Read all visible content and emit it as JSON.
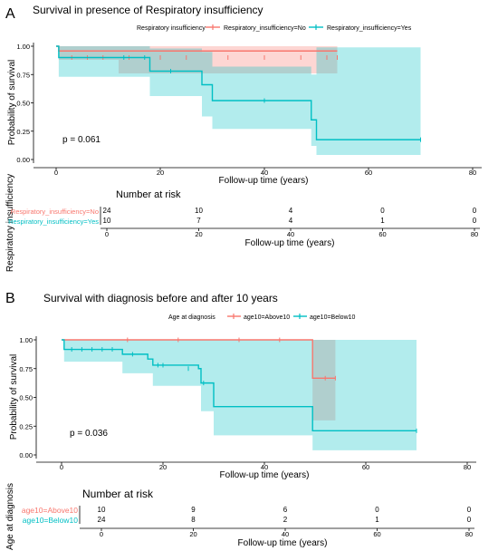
{
  "panels": [
    {
      "letter": "A",
      "title": "Survival in presence of Respiratory insufficiency",
      "legend_title": "Respiratory insufficiency",
      "pvalue": "p = 0.061",
      "risk_title": "Number at risk",
      "risk_ylabel": "Respiratory insufficiency"
    },
    {
      "letter": "B",
      "title": "Survival with diagnosis before and after 10 years",
      "legend_title": "Age at diagnosis",
      "pvalue": "p = 0.036",
      "risk_title": "Number at risk",
      "risk_ylabel": "Age at diagnosis"
    }
  ],
  "colors": {
    "red": "#F8766D",
    "cyan": "#00BFC4"
  },
  "chart_data": [
    {
      "type": "line",
      "title": "Survival in presence of Respiratory insufficiency",
      "xlabel": "Follow-up time (years)",
      "ylabel": "Probability of survival",
      "xlim": [
        0,
        80
      ],
      "ylim": [
        0,
        1
      ],
      "xticks": [
        "0",
        "20",
        "40",
        "60",
        "80"
      ],
      "yticks": [
        "0.00",
        "0.25",
        "0.50",
        "0.75",
        "1.00"
      ],
      "legend_position": "top",
      "series": [
        {
          "name": "Respiratory_insufficiency=No",
          "color": "#F8766D",
          "steps": [
            [
              0,
              1.0
            ],
            [
              0.5,
              0.958
            ],
            [
              54,
              0.958
            ]
          ],
          "band": [
            [
              0,
              1.0,
              1.0
            ],
            [
              0.5,
              1.0,
              0.88
            ],
            [
              12,
              1.0,
              0.76
            ],
            [
              54,
              1.0,
              0.76
            ]
          ],
          "censor": [
            [
              3,
              0.958
            ],
            [
              6,
              0.958
            ],
            [
              9,
              0.958
            ],
            [
              14,
              0.958
            ],
            [
              20,
              0.958
            ],
            [
              25,
              0.958
            ],
            [
              33,
              0.958
            ],
            [
              40,
              0.958
            ],
            [
              47,
              0.958
            ],
            [
              52,
              0.958
            ],
            [
              54,
              0.958
            ]
          ],
          "censor_level": 0.9,
          "risk": [
            "24",
            "10",
            "4",
            "0",
            "0"
          ]
        },
        {
          "name": "Respiratory_insufficiency=Yes",
          "color": "#00BFC4",
          "steps": [
            [
              0,
              1.0
            ],
            [
              0.5,
              0.9
            ],
            [
              18,
              0.78
            ],
            [
              28,
              0.66
            ],
            [
              30,
              0.52
            ],
            [
              49,
              0.35
            ],
            [
              50,
              0.175
            ],
            [
              70,
              0.175
            ]
          ],
          "band": [
            [
              0,
              1.0,
              1.0
            ],
            [
              0.5,
              1.0,
              0.73
            ],
            [
              18,
              0.98,
              0.56
            ],
            [
              28,
              0.95,
              0.38
            ],
            [
              30,
              0.82,
              0.27
            ],
            [
              49,
              0.75,
              0.12
            ],
            [
              50,
              0.99,
              0.04
            ],
            [
              70,
              0.99,
              0.04
            ]
          ],
          "censor": [
            [
              13,
              0.9
            ],
            [
              17,
              0.9
            ],
            [
              22,
              0.78
            ],
            [
              40,
              0.52
            ],
            [
              70,
              0.175
            ]
          ],
          "risk": [
            "10",
            "7",
            "4",
            "1",
            "0"
          ]
        }
      ],
      "risk_xticks": [
        "0",
        "20",
        "40",
        "60",
        "80"
      ],
      "risk_xlabel": "Follow-up time (years)"
    },
    {
      "type": "line",
      "title": "Survival with diagnosis before and after 10 years",
      "xlabel": "Follow-up time (years)",
      "ylabel": "Probability of survival",
      "xlim": [
        0,
        80
      ],
      "ylim": [
        0,
        1
      ],
      "xticks": [
        "0",
        "20",
        "40",
        "60",
        "80"
      ],
      "yticks": [
        "0.00",
        "0.25",
        "0.50",
        "0.75",
        "1.00"
      ],
      "legend_position": "top",
      "series": [
        {
          "name": "age10=Above10",
          "color": "#F8766D",
          "steps": [
            [
              0,
              1.0
            ],
            [
              49.5,
              1.0
            ],
            [
              49.5,
              0.667
            ],
            [
              54,
              0.667
            ]
          ],
          "band": [
            [
              0,
              1.0,
              1.0
            ],
            [
              49.5,
              1.0,
              0.3
            ],
            [
              54,
              1.0,
              0.3
            ]
          ],
          "censor": [
            [
              13,
              1.0
            ],
            [
              23,
              1.0
            ],
            [
              35,
              1.0
            ],
            [
              43,
              1.0
            ],
            [
              52,
              0.667
            ],
            [
              54,
              0.667
            ]
          ],
          "risk": [
            "10",
            "9",
            "6",
            "0",
            "0"
          ]
        },
        {
          "name": "age10=Below10",
          "color": "#00BFC4",
          "steps": [
            [
              0,
              1.0
            ],
            [
              0.5,
              0.917
            ],
            [
              12,
              0.875
            ],
            [
              17,
              0.833
            ],
            [
              18,
              0.78
            ],
            [
              27,
              0.75
            ],
            [
              27.5,
              0.625
            ],
            [
              30,
              0.42
            ],
            [
              49.5,
              0.42
            ],
            [
              49.5,
              0.21
            ],
            [
              70,
              0.21
            ]
          ],
          "band": [
            [
              0,
              1.0,
              1.0
            ],
            [
              0.5,
              1.0,
              0.81
            ],
            [
              12,
              1.0,
              0.71
            ],
            [
              18,
              1.0,
              0.6
            ],
            [
              27.5,
              1.0,
              0.38
            ],
            [
              30,
              1.0,
              0.17
            ],
            [
              49.5,
              1.0,
              0.04
            ],
            [
              70,
              1.0,
              0.04
            ]
          ],
          "censor": [
            [
              2,
              0.917
            ],
            [
              4,
              0.917
            ],
            [
              6,
              0.917
            ],
            [
              8,
              0.917
            ],
            [
              10,
              0.917
            ],
            [
              14,
              0.875
            ],
            [
              19,
              0.78
            ],
            [
              20,
              0.78
            ],
            [
              25,
              0.75
            ],
            [
              28,
              0.625
            ],
            [
              70,
              0.21
            ]
          ],
          "risk": [
            "24",
            "8",
            "2",
            "1",
            "0"
          ]
        }
      ],
      "risk_xticks": [
        "0",
        "20",
        "40",
        "60",
        "80"
      ],
      "risk_xlabel": "Follow-up time (years)"
    }
  ]
}
